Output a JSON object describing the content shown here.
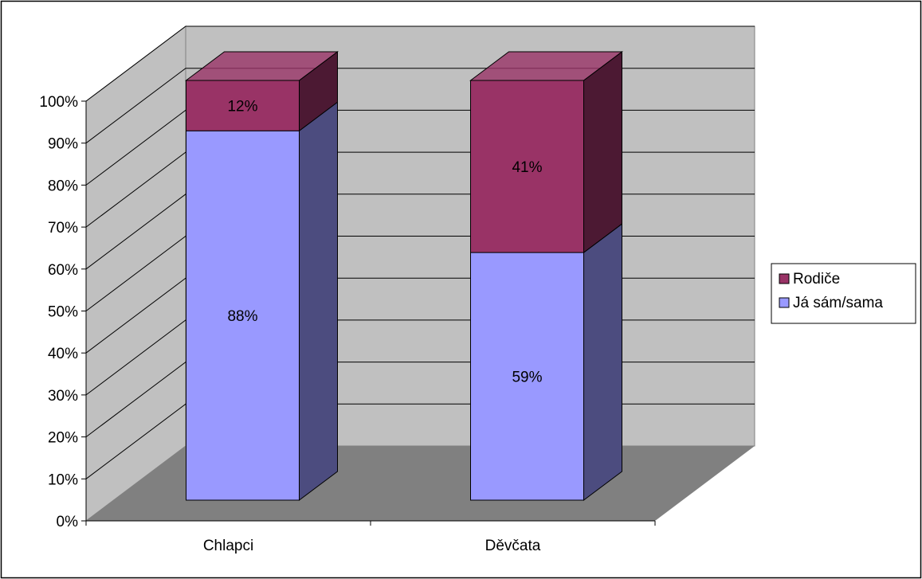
{
  "chart_data": {
    "type": "bar",
    "stacked": true,
    "percent_stacked": true,
    "three_d": true,
    "categories": [
      "Chlapci",
      "Děvčata"
    ],
    "series": [
      {
        "name": "Já sám/sama",
        "values": [
          88,
          59
        ],
        "labels": [
          "88%",
          "59%"
        ],
        "color": "#9999ff",
        "side_color": "#4c4c7f"
      },
      {
        "name": "Rodiče",
        "values": [
          12,
          41
        ],
        "labels": [
          "12%",
          "41%"
        ],
        "color": "#993366",
        "side_color": "#4c1933"
      }
    ],
    "y_ticks": [
      "0%",
      "10%",
      "20%",
      "30%",
      "40%",
      "50%",
      "60%",
      "70%",
      "80%",
      "90%",
      "100%"
    ],
    "ylim": [
      0,
      100
    ],
    "grid": true,
    "legend_position": "right",
    "legend_order": [
      "Rodiče",
      "Já sám/sama"
    ],
    "colors": {
      "wall": "#c0c0c0",
      "floor": "#808080",
      "gridline": "#000000",
      "frame": "#000000"
    }
  }
}
